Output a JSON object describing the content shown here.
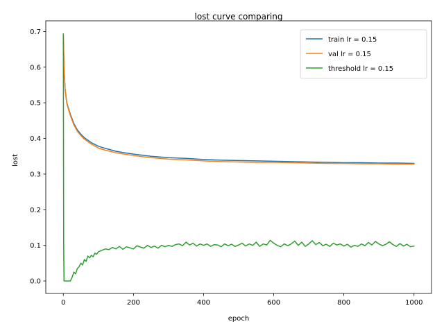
{
  "chart_data": {
    "type": "line",
    "title": "lost curve comparing",
    "xlabel": "epoch",
    "ylabel": "lost",
    "xlim": [
      -50,
      1050
    ],
    "ylim": [
      -0.035,
      0.73
    ],
    "xticks": [
      0,
      200,
      400,
      600,
      800,
      1000
    ],
    "xtick_labels": [
      "0",
      "200",
      "400",
      "600",
      "800",
      "1000"
    ],
    "yticks": [
      0.0,
      0.1,
      0.2,
      0.3,
      0.4,
      0.5,
      0.6,
      0.7
    ],
    "ytick_labels": [
      "0.0",
      "0.1",
      "0.2",
      "0.3",
      "0.4",
      "0.5",
      "0.6",
      "0.7"
    ],
    "grid": false,
    "legend_position": "top-right",
    "series": [
      {
        "name": "train lr = 0.15",
        "color": "#1f77b4",
        "x": [
          0,
          2,
          5,
          10,
          20,
          30,
          40,
          50,
          60,
          80,
          100,
          120,
          150,
          180,
          200,
          250,
          300,
          350,
          400,
          450,
          500,
          550,
          600,
          650,
          700,
          750,
          800,
          850,
          900,
          950,
          1000
        ],
        "y": [
          0.693,
          0.6,
          0.54,
          0.5,
          0.468,
          0.442,
          0.424,
          0.412,
          0.402,
          0.388,
          0.378,
          0.372,
          0.364,
          0.359,
          0.356,
          0.35,
          0.346,
          0.344,
          0.341,
          0.339,
          0.338,
          0.337,
          0.336,
          0.335,
          0.334,
          0.333,
          0.332,
          0.332,
          0.331,
          0.331,
          0.33
        ]
      },
      {
        "name": "val lr = 0.15",
        "color": "#ff7f0e",
        "x": [
          0,
          2,
          5,
          10,
          20,
          30,
          40,
          50,
          60,
          80,
          100,
          120,
          150,
          180,
          200,
          250,
          300,
          350,
          400,
          450,
          500,
          550,
          600,
          650,
          700,
          750,
          800,
          850,
          900,
          950,
          1000
        ],
        "y": [
          0.693,
          0.598,
          0.537,
          0.497,
          0.464,
          0.438,
          0.42,
          0.408,
          0.398,
          0.384,
          0.373,
          0.367,
          0.36,
          0.355,
          0.352,
          0.346,
          0.342,
          0.34,
          0.337,
          0.335,
          0.334,
          0.333,
          0.333,
          0.332,
          0.331,
          0.33,
          0.33,
          0.329,
          0.329,
          0.328,
          0.328
        ]
      },
      {
        "name": "threshold lr = 0.15",
        "color": "#2ca02c",
        "x": [
          0,
          1,
          2,
          5,
          10,
          15,
          20,
          25,
          30,
          35,
          40,
          45,
          50,
          55,
          60,
          65,
          70,
          75,
          80,
          85,
          90,
          95,
          100,
          110,
          120,
          130,
          140,
          150,
          160,
          170,
          180,
          190,
          200,
          210,
          220,
          230,
          240,
          250,
          260,
          270,
          280,
          290,
          300,
          310,
          320,
          330,
          340,
          350,
          360,
          370,
          380,
          390,
          400,
          410,
          420,
          430,
          440,
          450,
          460,
          470,
          480,
          490,
          500,
          510,
          520,
          530,
          540,
          550,
          560,
          570,
          580,
          590,
          600,
          610,
          620,
          630,
          640,
          650,
          660,
          670,
          680,
          690,
          700,
          710,
          720,
          730,
          740,
          750,
          760,
          770,
          780,
          790,
          800,
          810,
          820,
          830,
          840,
          850,
          860,
          870,
          880,
          890,
          900,
          910,
          920,
          930,
          940,
          950,
          960,
          970,
          980,
          990,
          1000
        ],
        "y": [
          0.693,
          0.1,
          0.0,
          0.0,
          0.0,
          0.0,
          0.0,
          0.01,
          0.025,
          0.02,
          0.035,
          0.04,
          0.05,
          0.045,
          0.06,
          0.055,
          0.07,
          0.065,
          0.072,
          0.068,
          0.078,
          0.075,
          0.082,
          0.086,
          0.09,
          0.088,
          0.094,
          0.09,
          0.097,
          0.089,
          0.096,
          0.093,
          0.09,
          0.099,
          0.095,
          0.092,
          0.1,
          0.094,
          0.098,
          0.092,
          0.1,
          0.096,
          0.1,
          0.097,
          0.102,
          0.104,
          0.099,
          0.109,
          0.101,
          0.106,
          0.098,
          0.104,
          0.1,
          0.104,
          0.097,
          0.102,
          0.101,
          0.096,
          0.104,
          0.099,
          0.103,
          0.097,
          0.101,
          0.106,
          0.098,
          0.104,
          0.1,
          0.109,
          0.097,
          0.104,
          0.101,
          0.114,
          0.106,
          0.1,
          0.096,
          0.104,
          0.099,
          0.104,
          0.112,
          0.1,
          0.109,
          0.097,
          0.104,
          0.113,
          0.102,
          0.108,
          0.099,
          0.103,
          0.097,
          0.106,
          0.101,
          0.104,
          0.098,
          0.103,
          0.095,
          0.1,
          0.097,
          0.104,
          0.099,
          0.108,
          0.101,
          0.111,
          0.104,
          0.099,
          0.103,
          0.11,
          0.102,
          0.097,
          0.105,
          0.098,
          0.103,
          0.096,
          0.098
        ]
      }
    ]
  }
}
